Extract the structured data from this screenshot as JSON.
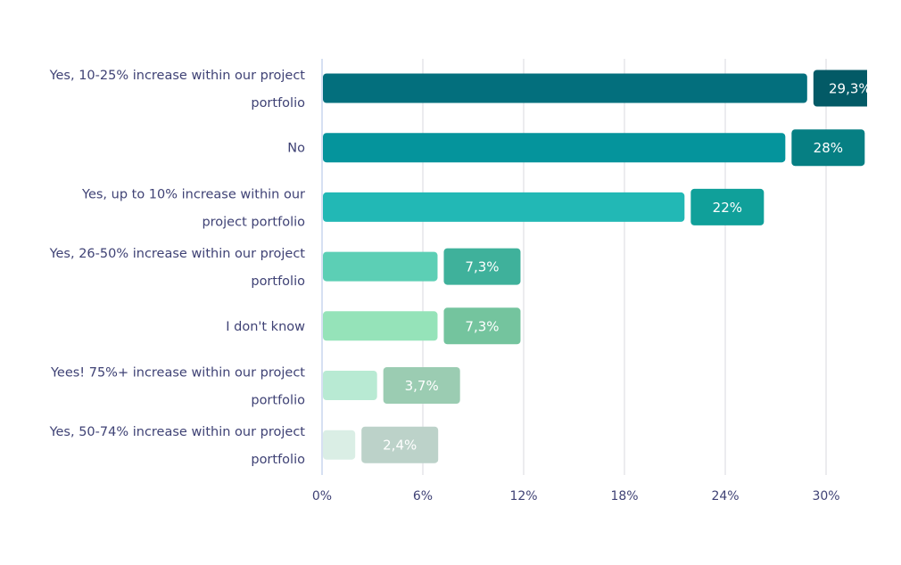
{
  "chart_data": {
    "type": "bar",
    "orientation": "horizontal",
    "title": "",
    "xlabel": "",
    "ylabel": "",
    "xlim": [
      0,
      30
    ],
    "grid": true,
    "legend": "none",
    "x_ticks": [
      "0%",
      "6%",
      "12%",
      "18%",
      "24%",
      "30%"
    ],
    "x_tick_values": [
      0,
      6,
      12,
      18,
      24,
      30
    ],
    "categories": [
      [
        "Yes, 10-25% increase within our project",
        "portfolio"
      ],
      [
        "No"
      ],
      [
        "Yes, up to 10% increase within our",
        "project portfolio"
      ],
      [
        "Yes, 26-50% increase within our project",
        "portfolio"
      ],
      [
        "I don't know"
      ],
      [
        "Yees! 75%+ increase within our project",
        "portfolio"
      ],
      [
        "Yes, 50-74% increase within our project",
        "portfolio"
      ]
    ],
    "values": [
      29.3,
      28,
      22,
      7.3,
      7.3,
      3.7,
      2.4
    ],
    "value_labels": [
      "29,3%",
      "28%",
      "22%",
      "7,3%",
      "7,3%",
      "3,7%",
      "2,4%"
    ],
    "bar_colors": [
      "#036f7d",
      "#05949c",
      "#22b8b5",
      "#5ccfb5",
      "#95e3b9",
      "#b8ead3",
      "#daeee5"
    ],
    "label_colors": [
      "#035a66",
      "#067f83",
      "#10a09a",
      "#3fb19b",
      "#74c49e",
      "#9bccb2",
      "#bcd2c9"
    ]
  }
}
